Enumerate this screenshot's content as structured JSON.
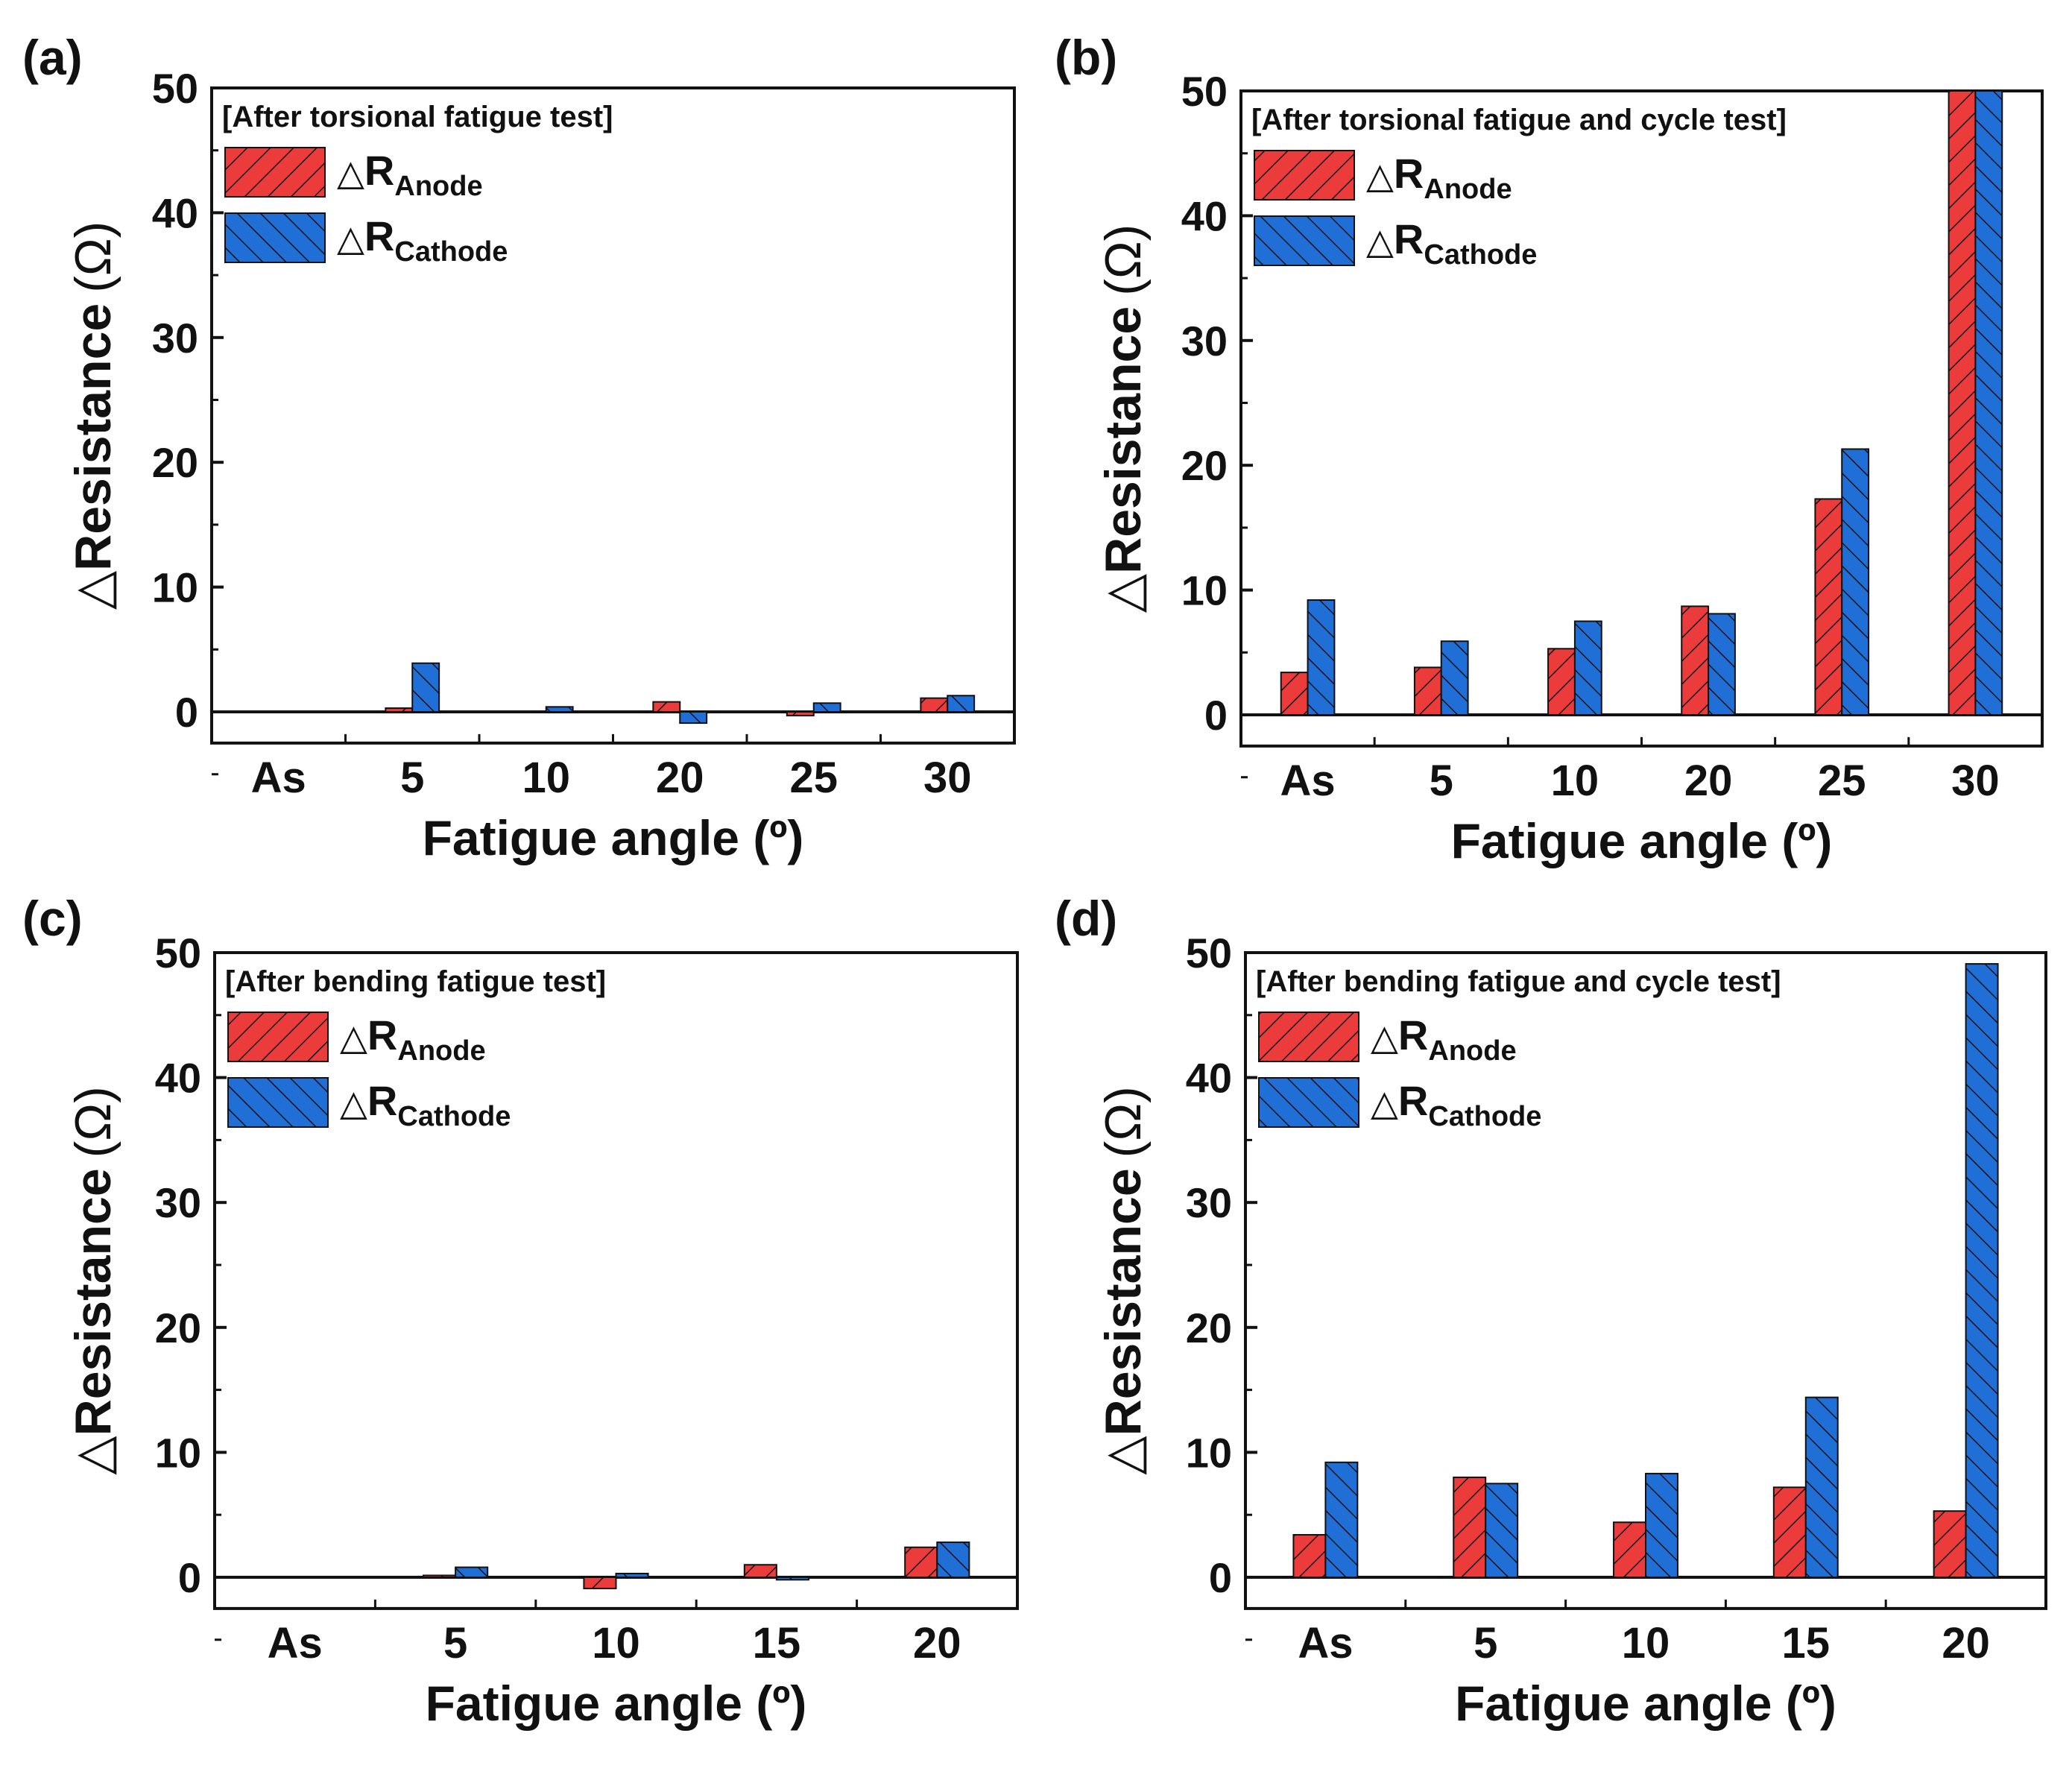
{
  "chart_data": [
    {
      "panel": "(a)",
      "type": "bar",
      "annotation": "[After torsional fatigue test]",
      "xlabel": "Fatigue angle (º)",
      "ylabel_symbol": "△",
      "ylabel_text": "Resistance",
      "ylabel_unit": "(Ω)",
      "ylim": [
        -2.5,
        50
      ],
      "yticks": [
        0,
        10,
        20,
        30,
        40,
        50
      ],
      "categories": [
        "As",
        "5",
        "10",
        "20",
        "25",
        "30"
      ],
      "series": [
        {
          "name": "Anode",
          "values": [
            0,
            0.3,
            0,
            0.8,
            -0.3,
            1.1
          ]
        },
        {
          "name": "Cathode",
          "values": [
            0,
            3.9,
            0.4,
            -0.9,
            0.7,
            1.3
          ]
        }
      ]
    },
    {
      "panel": "(b)",
      "type": "bar",
      "annotation": "[After torsional fatigue and cycle test]",
      "xlabel": "Fatigue angle (º)",
      "ylabel_symbol": "△",
      "ylabel_text": "Resistance",
      "ylabel_unit": "(Ω)",
      "ylim": [
        -2.5,
        50
      ],
      "yticks": [
        0,
        10,
        20,
        30,
        40,
        50
      ],
      "categories": [
        "As",
        "5",
        "10",
        "20",
        "25",
        "30"
      ],
      "series": [
        {
          "name": "Anode",
          "values": [
            3.4,
            3.8,
            5.3,
            8.7,
            17.3,
            50
          ]
        },
        {
          "name": "Cathode",
          "values": [
            9.2,
            5.9,
            7.5,
            8.1,
            21.3,
            50
          ]
        }
      ]
    },
    {
      "panel": "(c)",
      "type": "bar",
      "annotation": "[After bending fatigue test]",
      "xlabel": "Fatigue angle (º)",
      "ylabel_symbol": "△",
      "ylabel_text": "Resistance",
      "ylabel_unit": "(Ω)",
      "ylim": [
        -2.5,
        50
      ],
      "yticks": [
        0,
        10,
        20,
        30,
        40,
        50
      ],
      "categories": [
        "As",
        "5",
        "10",
        "15",
        "20"
      ],
      "series": [
        {
          "name": "Anode",
          "values": [
            0,
            0.15,
            -0.9,
            1.0,
            2.4
          ]
        },
        {
          "name": "Cathode",
          "values": [
            0,
            0.8,
            0.3,
            -0.2,
            2.8
          ]
        }
      ]
    },
    {
      "panel": "(d)",
      "type": "bar",
      "annotation": "[After bending fatigue and cycle test]",
      "xlabel": "Fatigue angle (º)",
      "ylabel_symbol": "△",
      "ylabel_text": "Resistance",
      "ylabel_unit": "(Ω)",
      "ylim": [
        -2.5,
        50
      ],
      "yticks": [
        0,
        10,
        20,
        30,
        40,
        50
      ],
      "categories": [
        "As",
        "5",
        "10",
        "15",
        "20"
      ],
      "series": [
        {
          "name": "Anode",
          "values": [
            3.4,
            8.0,
            4.4,
            7.2,
            5.3
          ]
        },
        {
          "name": "Cathode",
          "values": [
            9.2,
            7.5,
            8.3,
            14.4,
            49.1
          ]
        }
      ]
    }
  ],
  "legend": {
    "symbol": "△",
    "letter": "R",
    "anode_sub": "Anode",
    "cathode_sub": "Cathode"
  },
  "colors": {
    "anode_fill": "#ec3b3b",
    "cathode_fill": "#1f6fd6",
    "stroke": "#111111"
  }
}
